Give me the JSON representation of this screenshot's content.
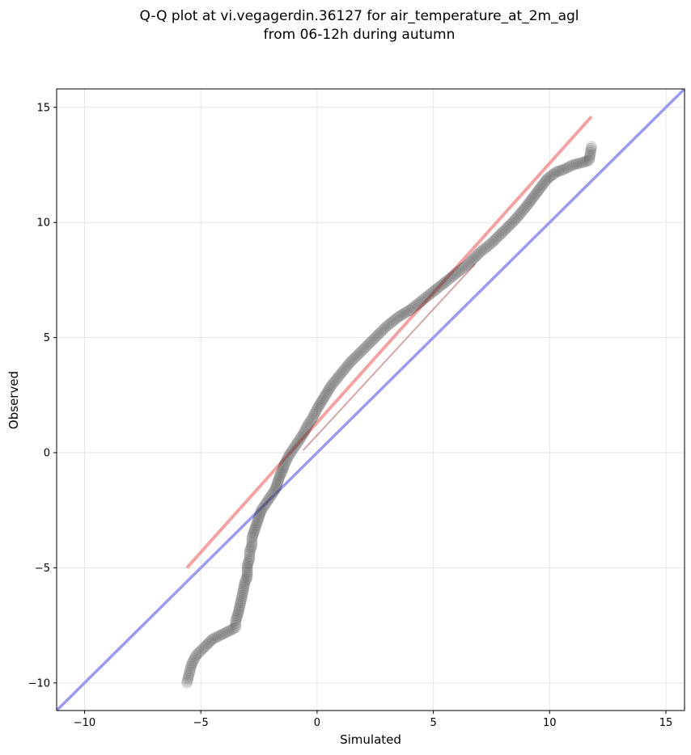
{
  "chart_data": {
    "type": "scatter",
    "title_lines": [
      "Q-Q plot at vi.vegagerdin.36127 for air_temperature_at_2m_agl",
      "from 06-12h during autumn"
    ],
    "xlabel": "Simulated",
    "ylabel": "Observed",
    "xlim": [
      -11.2,
      15.8
    ],
    "ylim": [
      -11.2,
      15.8
    ],
    "xticks": [
      -10,
      -5,
      0,
      5,
      10,
      15
    ],
    "yticks": [
      -10,
      -5,
      0,
      5,
      10,
      15
    ],
    "xtick_labels": [
      "−10",
      "−5",
      "0",
      "5",
      "10",
      "15"
    ],
    "ytick_labels": [
      "−10",
      "−5",
      "0",
      "5",
      "10",
      "15"
    ],
    "grid": true,
    "colors": {
      "points": "#333333",
      "fit_line": "#f28b8b",
      "fit_inner": "#8b0000",
      "identity_line": "#9b9bf2"
    },
    "identity_line": {
      "x": [
        -11.2,
        15.8
      ],
      "y": [
        -11.2,
        15.8
      ]
    },
    "fit_line": {
      "x": [
        -5.6,
        11.8
      ],
      "y": [
        -5.0,
        14.6
      ]
    },
    "quantiles": {
      "x": [
        -5.6,
        -5.4,
        -5.2,
        -4.8,
        -4.5,
        -3.5,
        -3.5,
        -3.4,
        -3.2,
        -3.1,
        -3.0,
        -3.0,
        -2.9,
        -2.9,
        -2.8,
        -2.8,
        -2.7,
        -2.6,
        -2.5,
        -2.4,
        -2.2,
        -2.0,
        -1.8,
        -1.7,
        -1.6,
        -1.5,
        -1.4,
        -1.2,
        -1.0,
        -0.8,
        -0.6,
        -0.4,
        -0.2,
        0.0,
        0.3,
        0.6,
        1.0,
        1.4,
        1.8,
        2.2,
        2.6,
        3.0,
        3.5,
        4.0,
        4.5,
        5.0,
        5.5,
        6.0,
        6.5,
        7.0,
        7.5,
        8.0,
        8.5,
        9.0,
        9.3,
        9.6,
        9.9,
        10.3,
        10.6,
        11.0,
        11.4,
        11.7,
        11.8
      ],
      "y": [
        -10.0,
        -9.2,
        -8.8,
        -8.4,
        -8.1,
        -7.6,
        -7.3,
        -7.0,
        -6.1,
        -5.6,
        -5.4,
        -4.9,
        -4.6,
        -4.3,
        -4.0,
        -3.7,
        -3.4,
        -3.1,
        -2.8,
        -2.5,
        -2.2,
        -1.9,
        -1.6,
        -1.3,
        -1.0,
        -0.8,
        -0.5,
        -0.1,
        0.2,
        0.5,
        0.8,
        1.2,
        1.5,
        1.9,
        2.4,
        2.9,
        3.4,
        3.9,
        4.3,
        4.7,
        5.1,
        5.5,
        5.9,
        6.2,
        6.6,
        7.0,
        7.4,
        7.8,
        8.2,
        8.7,
        9.1,
        9.6,
        10.1,
        10.7,
        11.1,
        11.5,
        11.9,
        12.2,
        12.3,
        12.5,
        12.6,
        12.7,
        13.3
      ]
    }
  }
}
